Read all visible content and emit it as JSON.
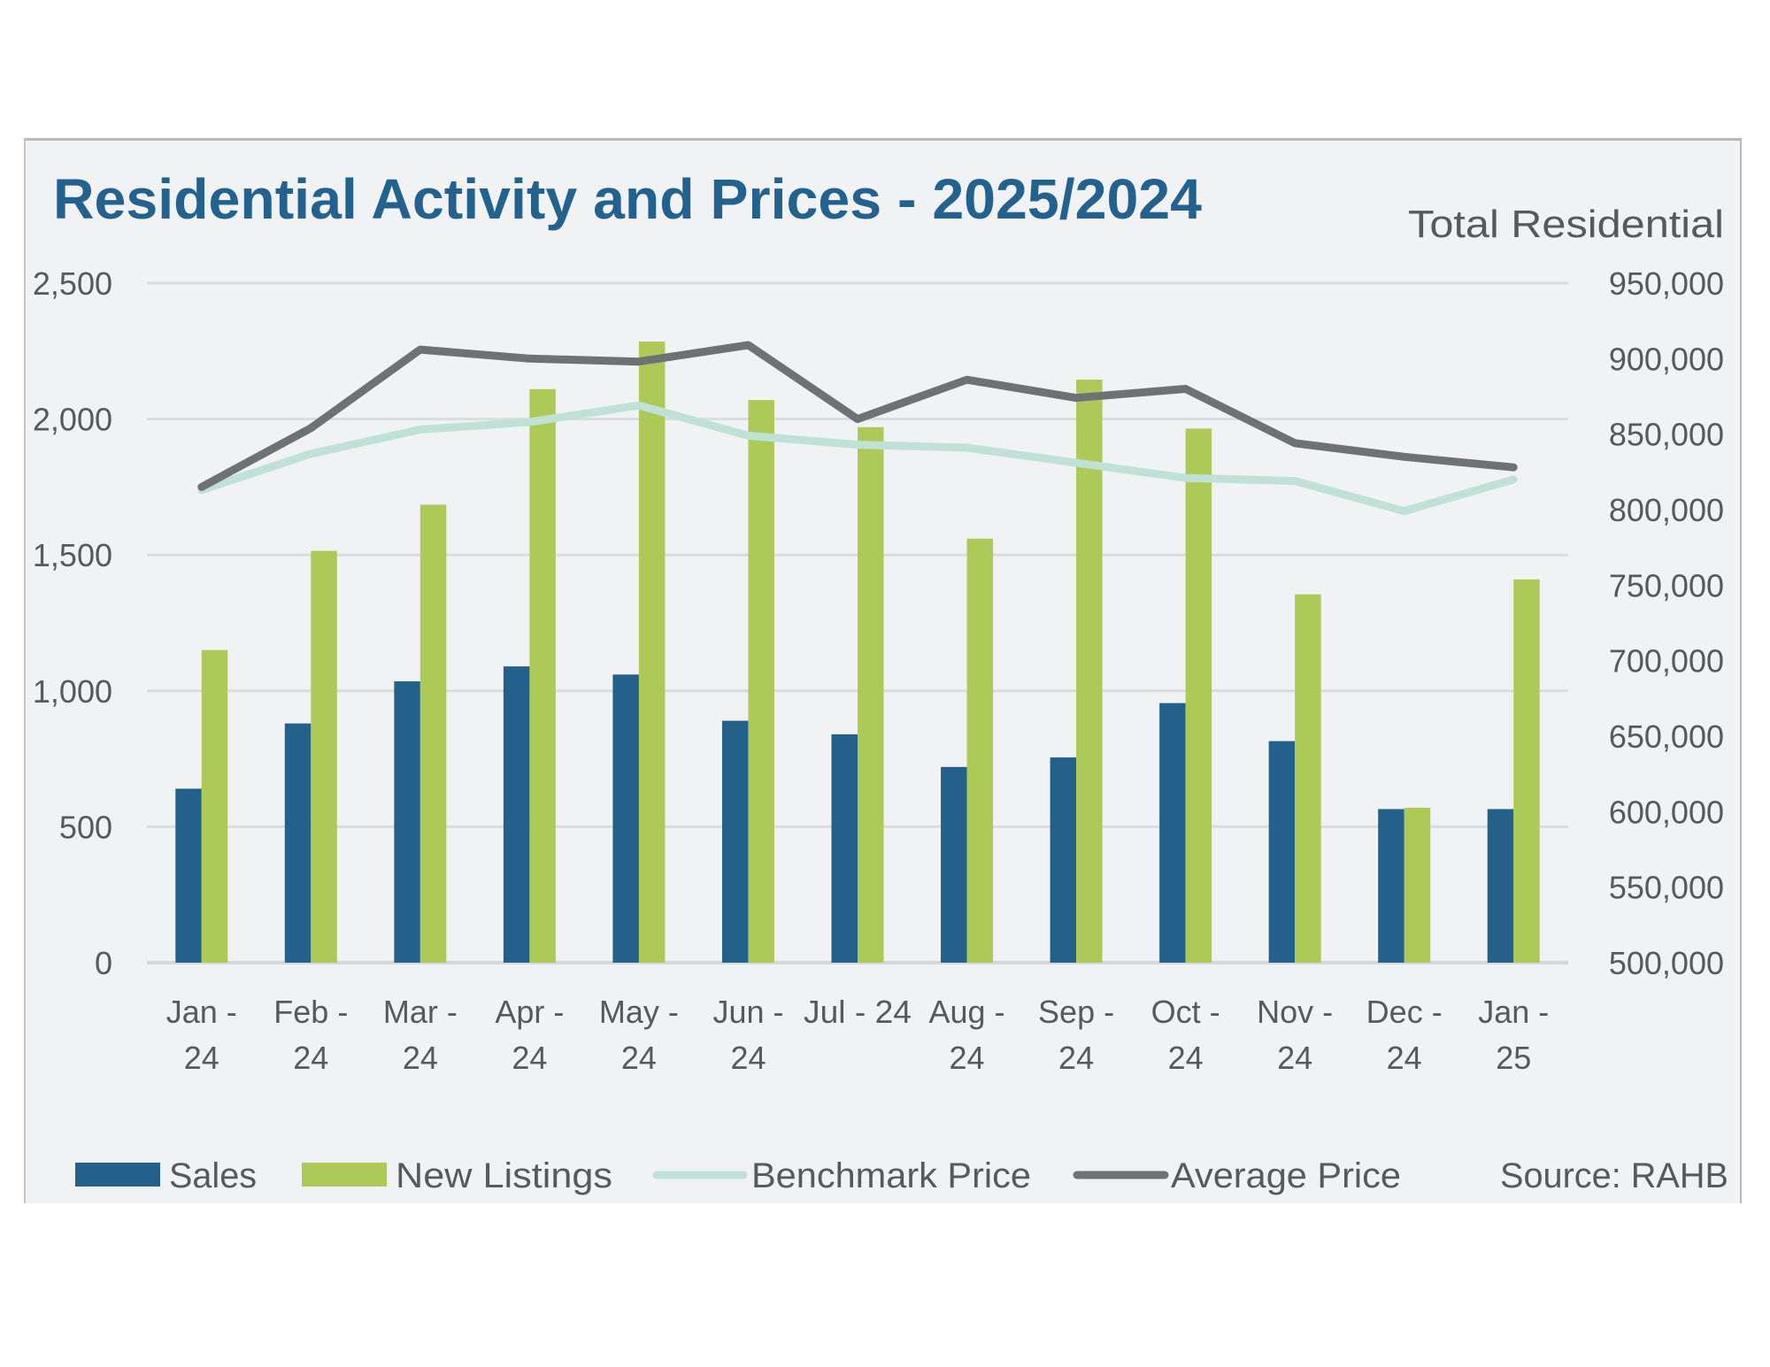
{
  "chart_data": {
    "type": "bar+line",
    "title": "Residential Activity and Prices - 2025/2024",
    "secondary_axis_title": "Total Residential",
    "source": "Source: RAHB",
    "categories": [
      [
        "Jan -",
        "24"
      ],
      [
        "Feb -",
        "24"
      ],
      [
        "Mar -",
        "24"
      ],
      [
        "Apr -",
        "24"
      ],
      [
        "May -",
        "24"
      ],
      [
        "Jun -",
        "24"
      ],
      [
        "Jul - 24"
      ],
      [
        "Aug -",
        "24"
      ],
      [
        "Sep -",
        "24"
      ],
      [
        "Oct -",
        "24"
      ],
      [
        "Nov -",
        "24"
      ],
      [
        "Dec -",
        "24"
      ],
      [
        "Jan -",
        "25"
      ]
    ],
    "y_left": {
      "ylim": [
        0,
        2500
      ],
      "ticks": [
        0,
        500,
        1000,
        1500,
        2000,
        2500
      ],
      "tick_labels": [
        "0",
        "500",
        "1,000",
        "1,500",
        "2,000",
        "2,500"
      ]
    },
    "y_right": {
      "ylim": [
        500000,
        950000
      ],
      "ticks": [
        500000,
        550000,
        600000,
        650000,
        700000,
        750000,
        800000,
        850000,
        900000,
        950000
      ],
      "tick_labels": [
        "500,000",
        "550,000",
        "600,000",
        "650,000",
        "700,000",
        "750,000",
        "800,000",
        "850,000",
        "900,000",
        "950,000"
      ]
    },
    "grid": true,
    "legend_position": "bottom",
    "series": [
      {
        "name": "Sales",
        "type": "bar",
        "axis": "left",
        "color": "#24618a",
        "values": [
          640,
          880,
          1035,
          1090,
          1060,
          890,
          840,
          720,
          755,
          955,
          815,
          565,
          565
        ]
      },
      {
        "name": "New Listings",
        "type": "bar",
        "axis": "left",
        "color": "#adc958",
        "values": [
          1150,
          1515,
          1685,
          2110,
          2285,
          2070,
          1970,
          1560,
          2145,
          1965,
          1355,
          570,
          1410
        ]
      },
      {
        "name": "Benchmark Price",
        "type": "line",
        "axis": "right",
        "color": "#bfe1d6",
        "values": [
          813000,
          837000,
          853000,
          858000,
          869000,
          849000,
          843000,
          841000,
          831000,
          821000,
          819000,
          799000,
          820000
        ]
      },
      {
        "name": "Average Price",
        "type": "line",
        "axis": "right",
        "color": "#6d7375",
        "values": [
          815000,
          854000,
          906000,
          900000,
          898000,
          909000,
          860000,
          886000,
          874000,
          880000,
          844000,
          835000,
          828000
        ]
      }
    ]
  }
}
